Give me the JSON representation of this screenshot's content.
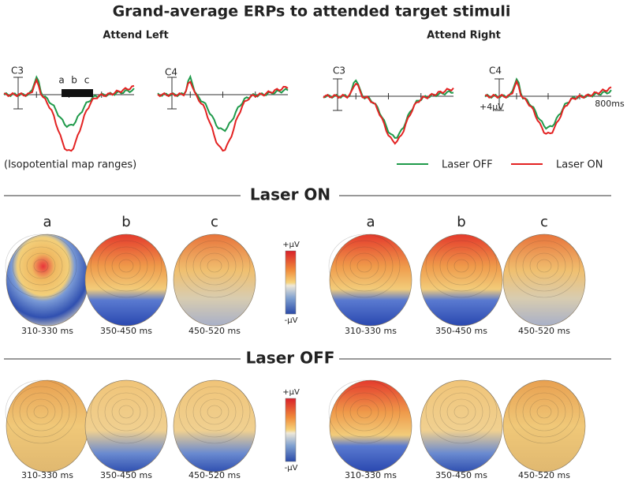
{
  "title": "Grand-average ERPs to attended target stimuli",
  "erp_panels": [
    {
      "condition": "Attend Left",
      "plots": [
        {
          "electrode": "C3"
        },
        {
          "electrode": "C4"
        }
      ]
    },
    {
      "condition": "Attend Right",
      "plots": [
        {
          "electrode": "C3"
        },
        {
          "electrode": "C4"
        }
      ]
    }
  ],
  "window_labels": [
    "a",
    "b",
    "c"
  ],
  "scale": {
    "amplitude": "+4µV",
    "time": "800ms"
  },
  "note": "(Isopotential map ranges)",
  "legend": [
    {
      "name": "Laser OFF",
      "color": "#1f9a4a"
    },
    {
      "name": "Laser ON",
      "color": "#e32222"
    }
  ],
  "sections": [
    {
      "label": "Laser ON",
      "colorbar": {
        "max": "+µV",
        "min": "-µV"
      },
      "maps": [
        {
          "letter": "a",
          "time": "310-330 ms"
        },
        {
          "letter": "b",
          "time": "350-450 ms"
        },
        {
          "letter": "c",
          "time": "450-520 ms"
        },
        {
          "letter": "a",
          "time": "310-330 ms"
        },
        {
          "letter": "b",
          "time": "350-450 ms"
        },
        {
          "letter": "c",
          "time": "450-520 ms"
        }
      ]
    },
    {
      "label": "Laser OFF",
      "colorbar": {
        "max": "+µV",
        "min": "-µV"
      },
      "maps": [
        {
          "time": "310-330 ms"
        },
        {
          "time": "350-450 ms"
        },
        {
          "time": "450-520 ms"
        },
        {
          "time": "310-330 ms"
        },
        {
          "time": "350-450 ms"
        },
        {
          "time": "450-520 ms"
        }
      ]
    }
  ]
}
